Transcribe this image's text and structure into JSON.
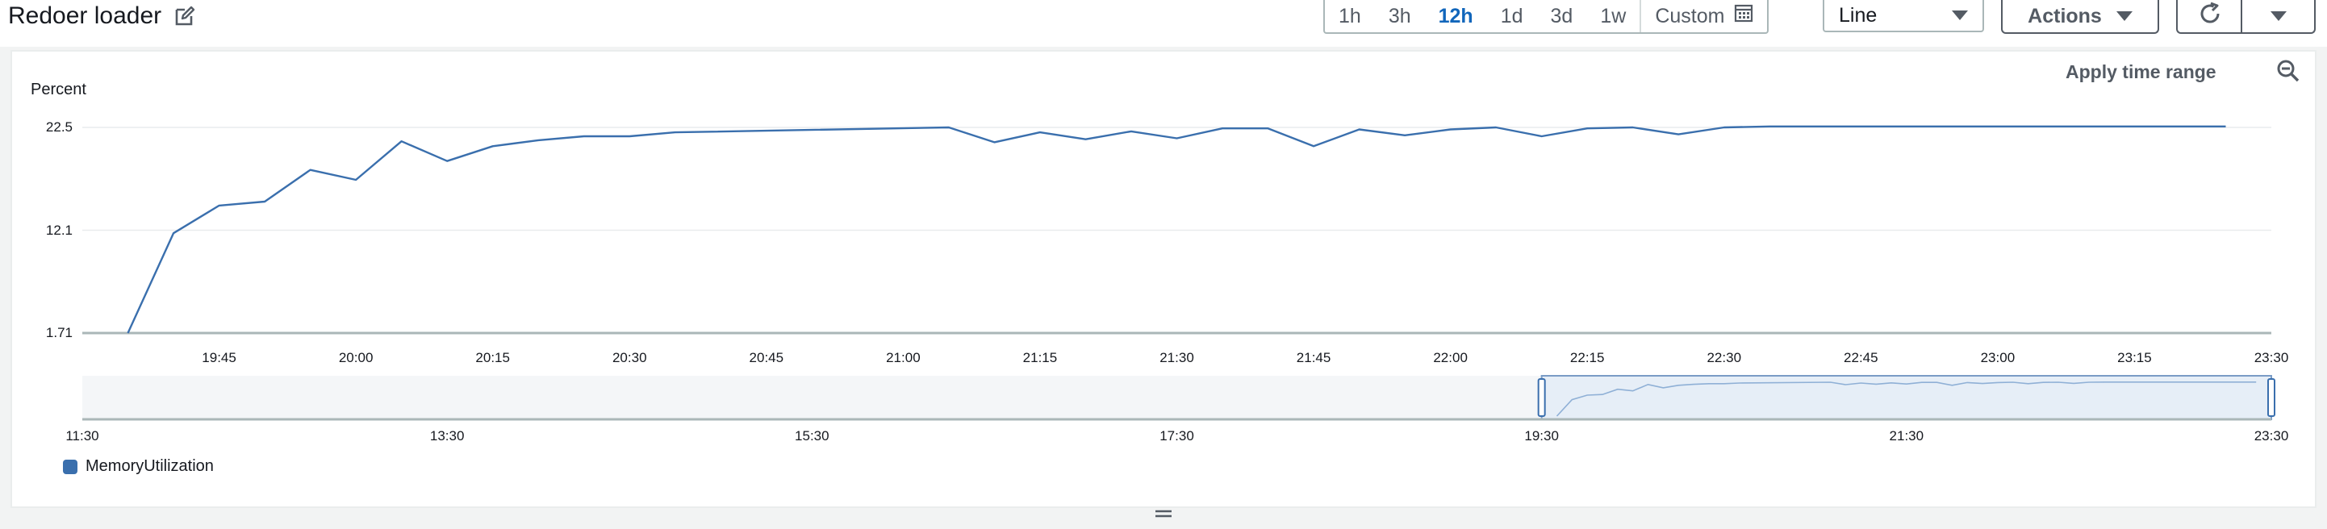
{
  "header": {
    "title": "Redoer loader"
  },
  "time_range": {
    "options": [
      "1h",
      "3h",
      "12h",
      "1d",
      "3d",
      "1w"
    ],
    "active": "12h",
    "custom_label": "Custom"
  },
  "view_select": {
    "value": "Line"
  },
  "actions_label": "Actions",
  "apply_time_range": "Apply time range",
  "legend": {
    "label": "MemoryUtilization",
    "color": "#3a6fad"
  },
  "chart_data": {
    "type": "line",
    "ylabel": "Percent",
    "ylim": [
      1.71,
      22.5
    ],
    "yticks": [
      "22.5",
      "12.1",
      "1.71"
    ],
    "xlabels": [
      "19:45",
      "20:00",
      "20:15",
      "20:30",
      "20:45",
      "21:00",
      "21:15",
      "21:30",
      "21:45",
      "22:00",
      "22:15",
      "22:30",
      "22:45",
      "23:00",
      "23:15",
      "23:30"
    ],
    "series": [
      {
        "name": "MemoryUtilization",
        "color": "#3a6fad",
        "x": [
          "19:35",
          "19:40",
          "19:45",
          "19:50",
          "19:55",
          "20:00",
          "20:05",
          "20:10",
          "20:15",
          "20:20",
          "20:25",
          "20:30",
          "20:35",
          "21:05",
          "21:10",
          "21:15",
          "21:20",
          "21:25",
          "21:30",
          "21:35",
          "21:40",
          "21:45",
          "21:50",
          "21:55",
          "22:00",
          "22:05",
          "22:10",
          "22:15",
          "22:20",
          "22:25",
          "22:30",
          "22:35",
          "23:25"
        ],
        "values": [
          1.71,
          11.8,
          14.6,
          15.0,
          18.2,
          17.2,
          21.1,
          19.1,
          20.6,
          21.2,
          21.6,
          21.6,
          22.0,
          22.5,
          21.0,
          22.0,
          21.3,
          22.1,
          21.4,
          22.4,
          22.4,
          20.6,
          22.3,
          21.7,
          22.3,
          22.5,
          21.6,
          22.4,
          22.5,
          21.8,
          22.5,
          22.6,
          22.6
        ]
      }
    ],
    "navigator": {
      "xlabels": [
        "11:30",
        "13:30",
        "15:30",
        "17:30",
        "19:30",
        "21:30",
        "23:30"
      ],
      "selection": [
        "19:30",
        "23:30"
      ]
    }
  }
}
